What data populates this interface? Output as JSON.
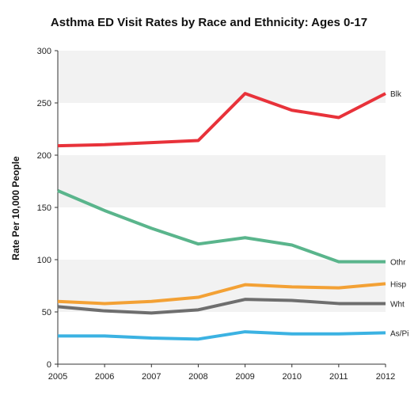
{
  "chart_data": {
    "type": "line",
    "title": "Asthma ED Visit Rates by Race and Ethnicity: Ages 0-17",
    "xlabel": "",
    "ylabel": "Rate Per 10,000 People",
    "x": [
      2005,
      2006,
      2007,
      2008,
      2009,
      2010,
      2011,
      2012
    ],
    "ylim": [
      0,
      300
    ],
    "yticks": [
      0,
      50,
      100,
      150,
      200,
      250,
      300
    ],
    "grid": "alternating horizontal bands",
    "legend": "end-of-line labels",
    "series": [
      {
        "name": "Blk",
        "color": "#e8323a",
        "values": [
          209,
          210,
          212,
          214,
          259,
          243,
          236,
          259
        ]
      },
      {
        "name": "Othr",
        "color": "#5ab58c",
        "values": [
          166,
          147,
          130,
          115,
          121,
          114,
          98,
          98
        ]
      },
      {
        "name": "Hisp",
        "color": "#f3a135",
        "values": [
          60,
          58,
          60,
          64,
          76,
          74,
          73,
          77
        ]
      },
      {
        "name": "Wht",
        "color": "#6e6e6e",
        "values": [
          55,
          51,
          49,
          52,
          62,
          61,
          58,
          58
        ]
      },
      {
        "name": "As/Pi",
        "color": "#3bb2e2",
        "values": [
          27,
          27,
          25,
          24,
          31,
          29,
          29,
          30
        ]
      }
    ]
  }
}
